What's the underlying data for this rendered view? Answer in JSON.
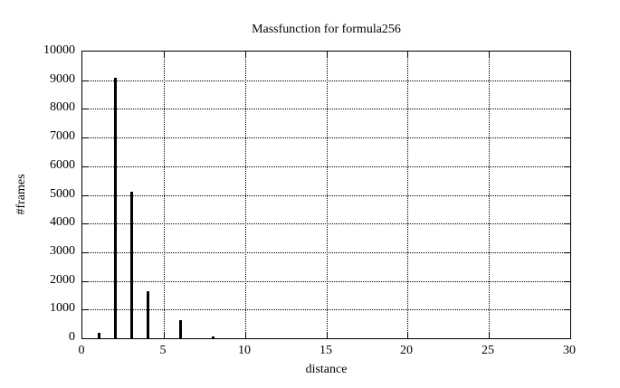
{
  "window": {
    "background_color": "#ffffff",
    "foreground_color": "#000000"
  },
  "chart_data": {
    "type": "bar",
    "render_style": "impulses",
    "title": "Massfunction for formula256",
    "xlabel": "distance",
    "ylabel": "#frames",
    "x": [
      1,
      2,
      3,
      4,
      6,
      8
    ],
    "values": [
      200,
      9100,
      5100,
      1650,
      620,
      50
    ],
    "xlim": [
      0,
      30
    ],
    "ylim": [
      0,
      10000
    ],
    "xticks": [
      0,
      5,
      10,
      15,
      20,
      25,
      30
    ],
    "yticks": [
      0,
      1000,
      2000,
      3000,
      4000,
      5000,
      6000,
      7000,
      8000,
      9000,
      10000
    ],
    "grid": true,
    "legend": "none",
    "colors": {
      "series": "#000000",
      "grid": "#000000",
      "axis": "#000000",
      "text": "#000000",
      "background": "#ffffff"
    }
  }
}
